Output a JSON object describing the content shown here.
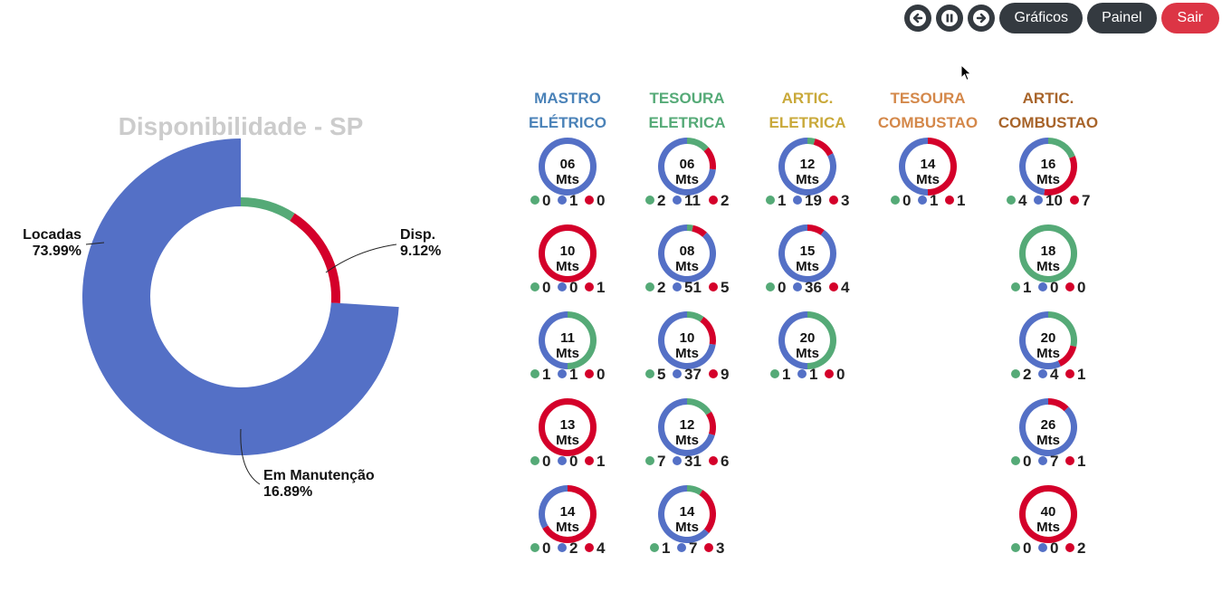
{
  "toolbar": {
    "prev_icon": "arrow-left-icon",
    "pause_icon": "pause-icon",
    "next_icon": "arrow-right-icon",
    "graficos_label": "Gráficos",
    "painel_label": "Painel",
    "sair_label": "Sair"
  },
  "colors": {
    "locadas": "#5470c6",
    "disp": "#55aa77",
    "manutencao": "#d4002a",
    "title": "#cccccc"
  },
  "chart_data": [
    {
      "type": "pie",
      "title": "Disponibilidade - SP",
      "slices": [
        {
          "name": "Locadas",
          "value": 73.99,
          "label": "73.99%"
        },
        {
          "name": "Disp.",
          "value": 9.12,
          "label": "9.12%"
        },
        {
          "name": "Em Manutenção",
          "value": 16.89,
          "label": "16.89%"
        }
      ]
    },
    {
      "type": "pie",
      "title": "",
      "groups": [
        {
          "title_lines": [
            "MASTRO",
            "ELÉTRICO"
          ],
          "color": "#4a82b8",
          "items": [
            {
              "size": "06",
              "unit": "Mts",
              "disp": 0,
              "locadas": 1,
              "manutencao": 0
            },
            {
              "size": "10",
              "unit": "Mts",
              "disp": 0,
              "locadas": 0,
              "manutencao": 1
            },
            {
              "size": "11",
              "unit": "Mts",
              "disp": 1,
              "locadas": 1,
              "manutencao": 0
            },
            {
              "size": "13",
              "unit": "Mts",
              "disp": 0,
              "locadas": 0,
              "manutencao": 1
            },
            {
              "size": "14",
              "unit": "Mts",
              "disp": 0,
              "locadas": 2,
              "manutencao": 4
            }
          ]
        },
        {
          "title_lines": [
            "TESOURA",
            "ELETRICA"
          ],
          "color": "#55aa77",
          "items": [
            {
              "size": "06",
              "unit": "Mts",
              "disp": 2,
              "locadas": 11,
              "manutencao": 2
            },
            {
              "size": "08",
              "unit": "Mts",
              "disp": 2,
              "locadas": 51,
              "manutencao": 5
            },
            {
              "size": "10",
              "unit": "Mts",
              "disp": 5,
              "locadas": 37,
              "manutencao": 9
            },
            {
              "size": "12",
              "unit": "Mts",
              "disp": 7,
              "locadas": 31,
              "manutencao": 6
            },
            {
              "size": "14",
              "unit": "Mts",
              "disp": 1,
              "locadas": 7,
              "manutencao": 3
            }
          ]
        },
        {
          "title_lines": [
            "ARTIC.",
            "ELETRICA"
          ],
          "color": "#c9a93a",
          "items": [
            {
              "size": "12",
              "unit": "Mts",
              "disp": 1,
              "locadas": 19,
              "manutencao": 3
            },
            {
              "size": "15",
              "unit": "Mts",
              "disp": 0,
              "locadas": 36,
              "manutencao": 4
            },
            {
              "size": "20",
              "unit": "Mts",
              "disp": 1,
              "locadas": 1,
              "manutencao": 0
            }
          ]
        },
        {
          "title_lines": [
            "TESOURA",
            "COMBUSTAO"
          ],
          "color": "#d4884a",
          "items": [
            {
              "size": "14",
              "unit": "Mts",
              "disp": 0,
              "locadas": 1,
              "manutencao": 1
            }
          ]
        },
        {
          "title_lines": [
            "ARTIC.",
            "COMBUSTAO"
          ],
          "color": "#a8642a",
          "items": [
            {
              "size": "16",
              "unit": "Mts",
              "disp": 4,
              "locadas": 10,
              "manutencao": 7
            },
            {
              "size": "18",
              "unit": "Mts",
              "disp": 1,
              "locadas": 0,
              "manutencao": 0
            },
            {
              "size": "20",
              "unit": "Mts",
              "disp": 2,
              "locadas": 4,
              "manutencao": 1
            },
            {
              "size": "26",
              "unit": "Mts",
              "disp": 0,
              "locadas": 7,
              "manutencao": 1
            },
            {
              "size": "40",
              "unit": "Mts",
              "disp": 0,
              "locadas": 0,
              "manutencao": 2
            }
          ]
        }
      ]
    }
  ]
}
